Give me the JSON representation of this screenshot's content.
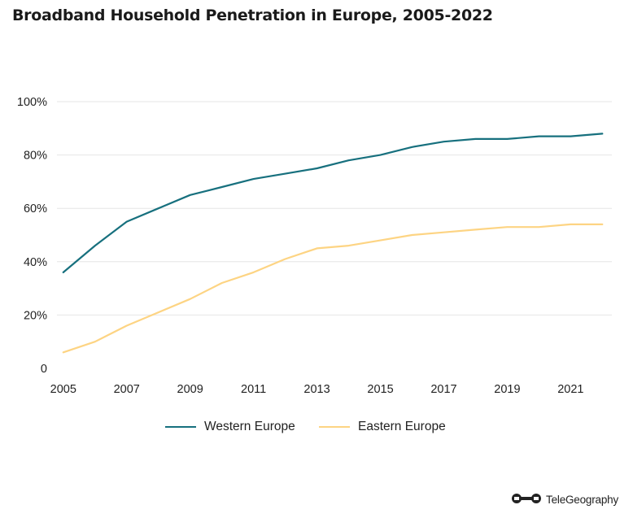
{
  "chart_data": {
    "type": "line",
    "title": "Broadband Household Penetration in Europe, 2005-2022",
    "xlabel": "",
    "ylabel": "",
    "x": [
      2005,
      2006,
      2007,
      2008,
      2009,
      2010,
      2011,
      2012,
      2013,
      2014,
      2015,
      2016,
      2017,
      2018,
      2019,
      2020,
      2021,
      2022
    ],
    "x_tick_labels": [
      "2005",
      "2007",
      "2009",
      "2011",
      "2013",
      "2015",
      "2017",
      "2019",
      "2021"
    ],
    "y_ticks": [
      0,
      20,
      40,
      60,
      80,
      100
    ],
    "y_tick_labels": [
      "0",
      "20%",
      "40%",
      "60%",
      "80%",
      "100%"
    ],
    "ylim": [
      0,
      100
    ],
    "grid": true,
    "legend_position": "bottom-center",
    "series": [
      {
        "name": "Western Europe",
        "color": "#17707e",
        "values": [
          36,
          46,
          55,
          60,
          65,
          68,
          71,
          73,
          75,
          78,
          80,
          83,
          85,
          86,
          86,
          87,
          87,
          88
        ]
      },
      {
        "name": "Eastern Europe",
        "color": "#fdd483",
        "values": [
          6,
          10,
          16,
          21,
          26,
          32,
          36,
          41,
          45,
          46,
          48,
          50,
          51,
          52,
          53,
          53,
          54,
          54
        ]
      }
    ]
  },
  "brand": {
    "name": "TeleGeography"
  }
}
